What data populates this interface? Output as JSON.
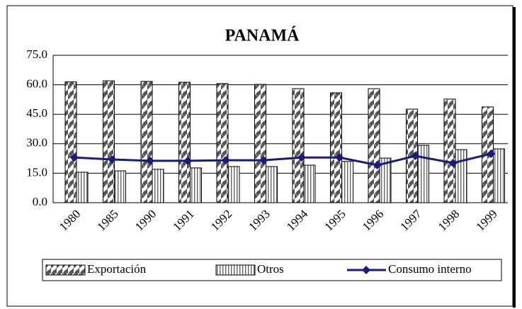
{
  "chart_data": {
    "type": "bar_line",
    "title": "PANAMÁ",
    "categories": [
      "1980",
      "1985",
      "1990",
      "1991",
      "1992",
      "1993",
      "1994",
      "1995",
      "1996",
      "1997",
      "1998",
      "1999"
    ],
    "series": [
      {
        "name": "Exportación",
        "type": "bar",
        "color": "#555555",
        "values": [
          61.5,
          62,
          61.7,
          61.3,
          60.6,
          60.2,
          58,
          55.9,
          58,
          47.6,
          52.7,
          48.7
        ]
      },
      {
        "name": "Otros",
        "type": "bar",
        "color": "#666666",
        "values": [
          15.5,
          16.2,
          17,
          17.7,
          18.4,
          18.4,
          19.1,
          21,
          22.7,
          29.2,
          27,
          27.4
        ]
      },
      {
        "name": "Consumo interno",
        "type": "line",
        "color": "#1a1a80",
        "values": [
          23,
          22,
          21.3,
          21.3,
          21.6,
          21.6,
          23,
          23,
          19.1,
          23.8,
          20.2,
          24.9
        ]
      }
    ],
    "ylim": [
      0,
      75
    ],
    "yticks": [
      {
        "value": 0,
        "label": "0.0"
      },
      {
        "value": 15,
        "label": "15.0"
      },
      {
        "value": 30,
        "label": "30.0"
      },
      {
        "value": 45,
        "label": "45.0"
      },
      {
        "value": 60,
        "label": "60.0"
      },
      {
        "value": 75,
        "label": "75.0"
      }
    ],
    "grid": true
  }
}
